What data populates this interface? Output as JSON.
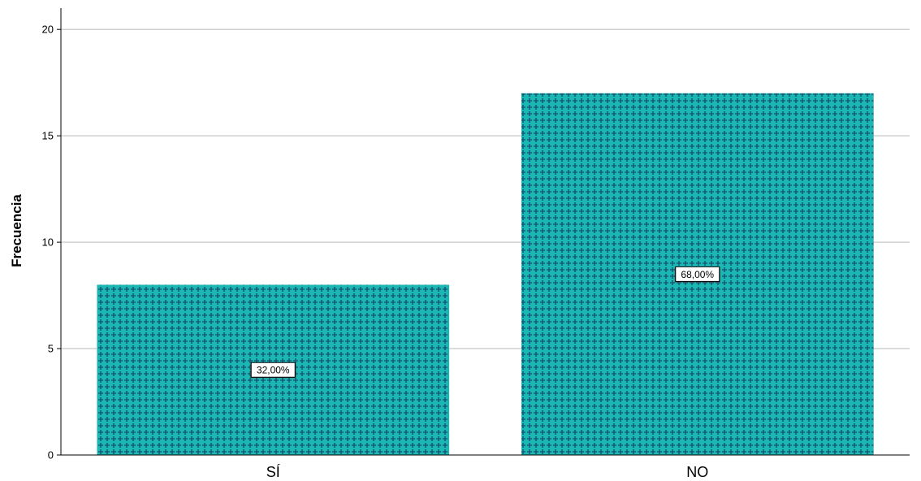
{
  "chart_data": {
    "type": "bar",
    "categories": [
      "SÍ",
      "NO"
    ],
    "values": [
      8,
      17
    ],
    "data_labels": [
      "32,00%",
      "68,00%"
    ],
    "title": "",
    "xlabel": "",
    "ylabel": "Frecuencia",
    "ylim": [
      0,
      21
    ],
    "yticks": [
      0,
      5,
      10,
      15,
      20
    ],
    "grid": true,
    "colors": {
      "bar": "#1ab8b3",
      "pattern": "#1a5a78",
      "grid": "#d0d0d0",
      "axis": "#000000"
    }
  }
}
